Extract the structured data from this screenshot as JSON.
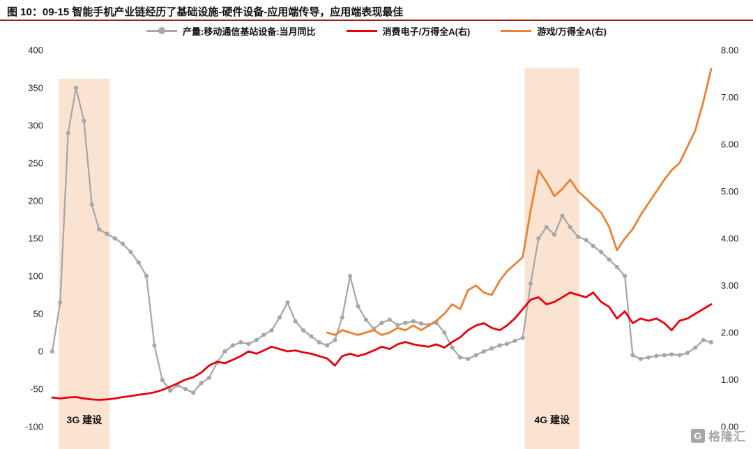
{
  "watermark": {
    "logo_letter": "G",
    "text": "格隆汇"
  },
  "colors": {
    "title_rule": "#9e2121",
    "band": "#fbe3d2",
    "gray": "#a7a7a7",
    "red": "#e8000d",
    "orange": "#ed8033",
    "axis_text": "#262626"
  },
  "chart_data": {
    "type": "line",
    "title": "图 10：09-15 智能手机产业链经历了基础设施-硬件设备-应用端传导，应用端表现最佳",
    "legend_position": "top",
    "grid": false,
    "left_axis": {
      "min": -100,
      "max": 400,
      "ticks": [
        400,
        350,
        300,
        250,
        200,
        150,
        100,
        50,
        0,
        -50,
        -100
      ]
    },
    "right_axis": {
      "min": 0,
      "max": 8,
      "ticks": [
        "8.00",
        "7.00",
        "6.00",
        "5.00",
        "4.00",
        "3.00",
        "2.00",
        "1.00",
        "0.00"
      ]
    },
    "bands": [
      {
        "label": "3G 建设",
        "x_start_pct": 1.0,
        "x_end_pct": 8.7,
        "color": "#fbe3d2"
      },
      {
        "label": "4G 建设",
        "x_start_pct": 71.7,
        "x_end_pct": 80.0,
        "color": "#fbe3d2"
      }
    ],
    "series": [
      {
        "name": "产量:移动通信基站设备:当月同比",
        "axis": "left",
        "color": "#a7a7a7",
        "marker": true,
        "points": [
          [
            0,
            0
          ],
          [
            1.2,
            65
          ],
          [
            2.4,
            290
          ],
          [
            3.6,
            350
          ],
          [
            4.8,
            306
          ],
          [
            6.0,
            195
          ],
          [
            7.1,
            162
          ],
          [
            8.3,
            156
          ],
          [
            9.5,
            150
          ],
          [
            10.7,
            143
          ],
          [
            11.9,
            132
          ],
          [
            13.1,
            118
          ],
          [
            14.3,
            100
          ],
          [
            15.5,
            8
          ],
          [
            16.7,
            -38
          ],
          [
            17.9,
            -52
          ],
          [
            19.0,
            -45
          ],
          [
            20.2,
            -50
          ],
          [
            21.4,
            -55
          ],
          [
            22.6,
            -42
          ],
          [
            23.8,
            -35
          ],
          [
            25.0,
            -15
          ],
          [
            26.2,
            0
          ],
          [
            27.4,
            8
          ],
          [
            28.6,
            12
          ],
          [
            29.8,
            10
          ],
          [
            31.0,
            15
          ],
          [
            32.1,
            22
          ],
          [
            33.3,
            28
          ],
          [
            34.5,
            45
          ],
          [
            35.7,
            65
          ],
          [
            36.9,
            40
          ],
          [
            38.1,
            28
          ],
          [
            39.3,
            20
          ],
          [
            40.5,
            12
          ],
          [
            41.7,
            8
          ],
          [
            42.9,
            15
          ],
          [
            44.0,
            45
          ],
          [
            45.2,
            100
          ],
          [
            46.4,
            60
          ],
          [
            47.6,
            42
          ],
          [
            48.8,
            30
          ],
          [
            50.0,
            38
          ],
          [
            51.2,
            42
          ],
          [
            52.4,
            35
          ],
          [
            53.6,
            38
          ],
          [
            54.8,
            40
          ],
          [
            56.0,
            37
          ],
          [
            57.1,
            35
          ],
          [
            58.3,
            38
          ],
          [
            59.5,
            25
          ],
          [
            60.7,
            5
          ],
          [
            61.9,
            -8
          ],
          [
            63.1,
            -10
          ],
          [
            64.3,
            -5
          ],
          [
            65.5,
            0
          ],
          [
            66.7,
            4
          ],
          [
            67.9,
            8
          ],
          [
            69.0,
            10
          ],
          [
            70.2,
            14
          ],
          [
            71.4,
            18
          ],
          [
            72.6,
            90
          ],
          [
            73.8,
            150
          ],
          [
            75.0,
            165
          ],
          [
            76.2,
            155
          ],
          [
            77.4,
            180
          ],
          [
            78.6,
            165
          ],
          [
            79.8,
            152
          ],
          [
            81.0,
            148
          ],
          [
            82.1,
            140
          ],
          [
            83.3,
            132
          ],
          [
            84.5,
            122
          ],
          [
            85.7,
            112
          ],
          [
            86.9,
            100
          ],
          [
            88.1,
            -5
          ],
          [
            89.3,
            -10
          ],
          [
            90.5,
            -8
          ],
          [
            91.7,
            -6
          ],
          [
            92.9,
            -5
          ],
          [
            94.0,
            -4
          ],
          [
            95.2,
            -5
          ],
          [
            96.4,
            -2
          ],
          [
            97.6,
            5
          ],
          [
            98.8,
            15
          ],
          [
            100,
            12
          ]
        ]
      },
      {
        "name": "消费电子/万得全A(右)",
        "axis": "right",
        "color": "#e8000d",
        "marker": false,
        "points": [
          [
            0,
            0.62
          ],
          [
            1.2,
            0.6
          ],
          [
            2.4,
            0.62
          ],
          [
            3.6,
            0.63
          ],
          [
            4.8,
            0.6
          ],
          [
            6.0,
            0.58
          ],
          [
            7.1,
            0.57
          ],
          [
            8.3,
            0.58
          ],
          [
            9.5,
            0.6
          ],
          [
            10.7,
            0.63
          ],
          [
            11.9,
            0.65
          ],
          [
            13.1,
            0.68
          ],
          [
            14.3,
            0.7
          ],
          [
            15.5,
            0.73
          ],
          [
            16.7,
            0.78
          ],
          [
            17.9,
            0.85
          ],
          [
            19.0,
            0.92
          ],
          [
            20.2,
            1.0
          ],
          [
            21.4,
            1.05
          ],
          [
            22.6,
            1.15
          ],
          [
            23.8,
            1.3
          ],
          [
            25.0,
            1.38
          ],
          [
            26.2,
            1.35
          ],
          [
            27.4,
            1.42
          ],
          [
            28.6,
            1.5
          ],
          [
            29.8,
            1.6
          ],
          [
            31.0,
            1.55
          ],
          [
            32.1,
            1.62
          ],
          [
            33.3,
            1.7
          ],
          [
            34.5,
            1.65
          ],
          [
            35.7,
            1.6
          ],
          [
            36.9,
            1.62
          ],
          [
            38.1,
            1.58
          ],
          [
            39.3,
            1.55
          ],
          [
            40.5,
            1.5
          ],
          [
            41.7,
            1.45
          ],
          [
            42.9,
            1.3
          ],
          [
            44.0,
            1.5
          ],
          [
            45.2,
            1.55
          ],
          [
            46.4,
            1.5
          ],
          [
            47.6,
            1.55
          ],
          [
            48.8,
            1.62
          ],
          [
            50.0,
            1.7
          ],
          [
            51.2,
            1.65
          ],
          [
            52.4,
            1.75
          ],
          [
            53.6,
            1.8
          ],
          [
            54.8,
            1.75
          ],
          [
            56.0,
            1.72
          ],
          [
            57.1,
            1.7
          ],
          [
            58.3,
            1.75
          ],
          [
            59.5,
            1.68
          ],
          [
            60.7,
            1.8
          ],
          [
            61.9,
            1.9
          ],
          [
            63.1,
            2.05
          ],
          [
            64.3,
            2.15
          ],
          [
            65.5,
            2.2
          ],
          [
            66.7,
            2.1
          ],
          [
            67.9,
            2.05
          ],
          [
            69.0,
            2.15
          ],
          [
            70.2,
            2.3
          ],
          [
            71.4,
            2.5
          ],
          [
            72.6,
            2.7
          ],
          [
            73.8,
            2.75
          ],
          [
            75.0,
            2.6
          ],
          [
            76.2,
            2.65
          ],
          [
            77.4,
            2.75
          ],
          [
            78.6,
            2.85
          ],
          [
            79.8,
            2.8
          ],
          [
            81.0,
            2.75
          ],
          [
            82.1,
            2.85
          ],
          [
            83.3,
            2.65
          ],
          [
            84.5,
            2.55
          ],
          [
            85.7,
            2.3
          ],
          [
            86.9,
            2.45
          ],
          [
            88.1,
            2.2
          ],
          [
            89.3,
            2.3
          ],
          [
            90.5,
            2.25
          ],
          [
            91.7,
            2.3
          ],
          [
            92.9,
            2.2
          ],
          [
            94.0,
            2.05
          ],
          [
            95.2,
            2.25
          ],
          [
            96.4,
            2.3
          ],
          [
            97.6,
            2.4
          ],
          [
            98.8,
            2.5
          ],
          [
            100,
            2.6
          ]
        ]
      },
      {
        "name": "游戏/万得全A(右)",
        "axis": "right",
        "color": "#ed8033",
        "marker": false,
        "points": [
          [
            41.7,
            2.0
          ],
          [
            42.9,
            1.95
          ],
          [
            44.0,
            2.05
          ],
          [
            45.2,
            2.0
          ],
          [
            46.4,
            1.95
          ],
          [
            47.6,
            2.0
          ],
          [
            48.8,
            2.05
          ],
          [
            50.0,
            1.95
          ],
          [
            51.2,
            2.0
          ],
          [
            52.4,
            2.1
          ],
          [
            53.6,
            2.05
          ],
          [
            54.8,
            2.15
          ],
          [
            56.0,
            2.05
          ],
          [
            57.1,
            2.15
          ],
          [
            58.3,
            2.25
          ],
          [
            59.5,
            2.4
          ],
          [
            60.7,
            2.6
          ],
          [
            61.9,
            2.5
          ],
          [
            63.1,
            2.9
          ],
          [
            64.3,
            3.0
          ],
          [
            65.5,
            2.85
          ],
          [
            66.7,
            2.8
          ],
          [
            67.9,
            3.1
          ],
          [
            69.0,
            3.3
          ],
          [
            70.2,
            3.45
          ],
          [
            71.4,
            3.6
          ],
          [
            72.6,
            4.6
          ],
          [
            73.8,
            5.45
          ],
          [
            75.0,
            5.2
          ],
          [
            76.2,
            4.9
          ],
          [
            77.4,
            5.05
          ],
          [
            78.6,
            5.25
          ],
          [
            79.8,
            5.0
          ],
          [
            81.0,
            4.85
          ],
          [
            82.1,
            4.7
          ],
          [
            83.3,
            4.55
          ],
          [
            84.5,
            4.25
          ],
          [
            85.7,
            3.75
          ],
          [
            86.9,
            4.0
          ],
          [
            88.1,
            4.2
          ],
          [
            89.3,
            4.5
          ],
          [
            90.5,
            4.75
          ],
          [
            91.7,
            5.0
          ],
          [
            92.9,
            5.25
          ],
          [
            94.0,
            5.45
          ],
          [
            95.2,
            5.6
          ],
          [
            96.4,
            5.95
          ],
          [
            97.6,
            6.3
          ],
          [
            98.8,
            6.9
          ],
          [
            100,
            7.6
          ]
        ]
      }
    ]
  }
}
